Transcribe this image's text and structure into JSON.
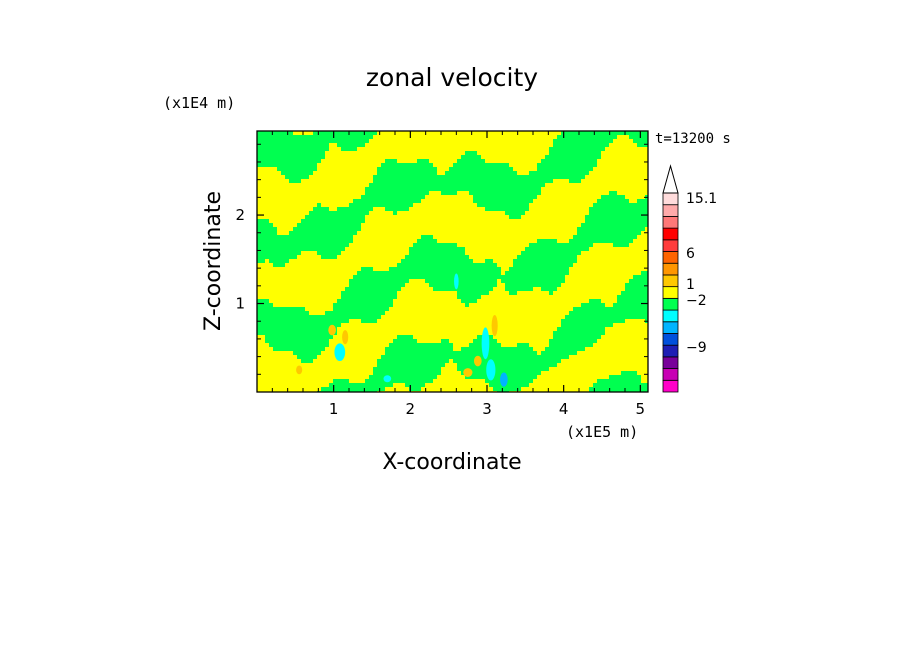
{
  "chart_data": {
    "type": "heatmap",
    "title": "zonal velocity",
    "xlabel": "X-coordinate",
    "ylabel": "Z-coordinate",
    "x_unit": "(x1E5 m)",
    "y_unit": "(x1E4 m)",
    "time_label": "t=13200 s",
    "xlim": [
      0,
      5.1
    ],
    "ylim": [
      0,
      2.95
    ],
    "x_ticks": [
      "1",
      "2",
      "3",
      "4",
      "5"
    ],
    "y_ticks": [
      "1",
      "2"
    ],
    "grid": false,
    "colorbar": {
      "levels": [
        {
          "color": "#ff00c8"
        },
        {
          "color": "#c800b4"
        },
        {
          "color": "#78009a"
        },
        {
          "color": "#1e1eb4"
        },
        {
          "color": "#0050dc"
        },
        {
          "color": "#00b4ff"
        },
        {
          "color": "#00ffff"
        },
        {
          "color": "#00ff50"
        },
        {
          "color": "#ffff00"
        },
        {
          "color": "#ffc800"
        },
        {
          "color": "#ff9600"
        },
        {
          "color": "#ff6400"
        },
        {
          "color": "#ff3c3c"
        },
        {
          "color": "#ff0000"
        },
        {
          "color": "#ff7878"
        },
        {
          "color": "#ffaaaa"
        },
        {
          "color": "#ffdcdc"
        }
      ],
      "tick_labels": [
        {
          "label": "15.1",
          "value": 15.1
        },
        {
          "label": "6",
          "value": 6
        },
        {
          "label": "1",
          "value": 1
        },
        {
          "label": "−2",
          "value": -2
        },
        {
          "label": "−9",
          "value": -9
        }
      ]
    },
    "field_colors": {
      "positive": "#ffff00",
      "near_zero": "#00ff50",
      "negative_weak": "#00ffff",
      "negative_med": "#00b4ff",
      "positive_med": "#ffc800"
    }
  }
}
